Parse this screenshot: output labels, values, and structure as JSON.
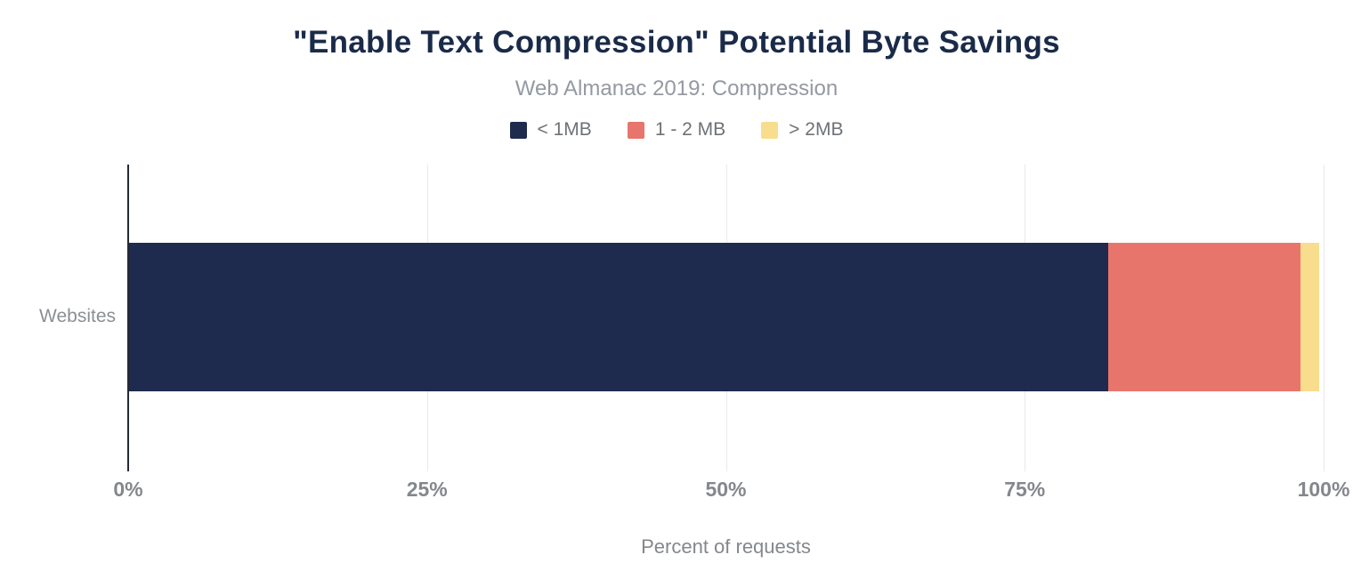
{
  "chart_data": {
    "type": "bar",
    "orientation": "horizontal",
    "stacked": true,
    "title": "\"Enable Text Compression\" Potential Byte Savings",
    "subtitle": "Web Almanac 2019: Compression",
    "categories": [
      "Websites"
    ],
    "series": [
      {
        "name": "< 1MB",
        "color": "#1e2b4e",
        "values": [
          82.0
        ]
      },
      {
        "name": "1 - 2 MB",
        "color": "#e8756b",
        "values": [
          16.1
        ]
      },
      {
        "name": "> 2MB",
        "color": "#f9dd8e",
        "values": [
          1.5
        ]
      }
    ],
    "xlabel": "Percent of requests",
    "xlim": [
      0,
      100
    ],
    "x_ticks": [
      {
        "label": "0%",
        "value": 0
      },
      {
        "label": "25%",
        "value": 25
      },
      {
        "label": "50%",
        "value": 50
      },
      {
        "label": "75%",
        "value": 75
      },
      {
        "label": "100%",
        "value": 100
      }
    ],
    "grid": "vertical",
    "legend_position": "top"
  },
  "colors": {
    "title": "#1a2b49",
    "subtitle": "#9499a2",
    "axis_text": "#84878c",
    "gridline": "#e8e9eb",
    "background": "#ffffff"
  }
}
